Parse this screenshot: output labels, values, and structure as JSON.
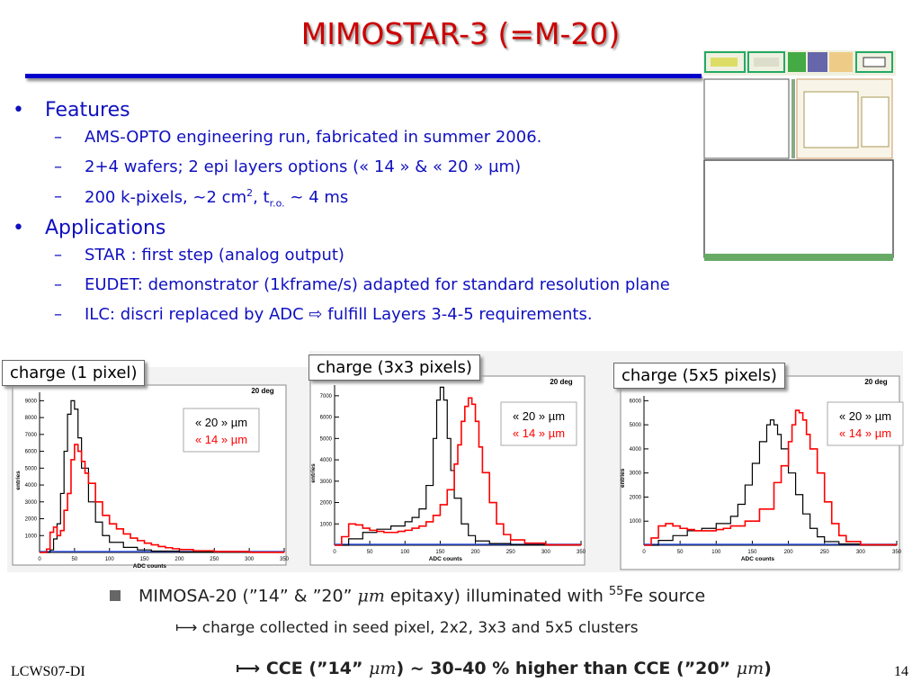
{
  "title": "MIMOSTAR-3 (=M-20)",
  "bullets": [
    {
      "label": "Features",
      "items": [
        "AMS-OPTO engineering run, fabricated in summer 2006.",
        "2+4 wafers; 2 epi layers options (« 14 » & « 20 » µm)",
        "200 k-pixels, ~2 cm², t r.o. ~ 4 ms"
      ]
    },
    {
      "label": "Applications",
      "items": [
        "STAR :  first step (analog output)",
        "EUDET: demonstrator (1kframe/s) adapted for standard resolution plane",
        "ILC: discri replaced by ADC ⇨ fulfill Layers 3-4-5 requirements."
      ]
    }
  ],
  "bullet3_parts": {
    "pre": "200 k-pixels, ~2 cm",
    "sup": "2",
    "mid": ", t",
    "sub": "r.o.",
    "post": " ~ 4 ms"
  },
  "plots": [
    {
      "label": "charge (1 pixel)",
      "tag": "20 deg",
      "xlabel": "ADC counts",
      "ylabel": "entries",
      "legend": [
        "« 20 » µm",
        "« 14 » µm"
      ]
    },
    {
      "label": "charge (3x3 pixels)",
      "tag": "20 deg",
      "xlabel": "ADC counts",
      "ylabel": "entries",
      "legend": [
        "« 20 » µm",
        "« 14 » µm"
      ]
    },
    {
      "label": "charge (5x5 pixels)",
      "tag": "20 deg",
      "xlabel": "ADC counts",
      "ylabel": "entries",
      "legend": [
        "« 20 » µm",
        "« 14 » µm"
      ]
    }
  ],
  "caption": {
    "line1_a": "MIMOSA-20 (”14” & ”20” ",
    "line1_mu": "μm",
    "line1_b": " epitaxy) illuminated with ",
    "line1_sup": "55",
    "line1_c": "Fe source",
    "line2": "charge collected in seed pixel, 2x2, 3x3 and 5x5 clusters",
    "line3_a": "CCE (”14” ",
    "line3_mu1": "μm",
    "line3_b": ") ~ 30–40 % higher than CCE (”20” ",
    "line3_mu2": "μm",
    "line3_c": ")"
  },
  "footer_left": "LCWS07-DI",
  "page_number": "14",
  "colors": {
    "title": "#cc0000",
    "bullets": "#1010c0",
    "rule": "#0000cc",
    "series_20": "#000000",
    "series_14": "#ff0000"
  },
  "chart_data": [
    {
      "type": "line",
      "title": "20 deg",
      "xlabel": "ADC counts",
      "ylabel": "entries",
      "xlim": [
        0,
        350
      ],
      "ylim": [
        0,
        9500
      ],
      "x_ticks": [
        0,
        50,
        100,
        150,
        200,
        250,
        300,
        350
      ],
      "y_ticks": [
        1000,
        2000,
        3000,
        4000,
        5000,
        6000,
        7000,
        8000,
        9000
      ],
      "series": [
        {
          "name": "« 20 » µm",
          "color": "#000000",
          "x": [
            0,
            15,
            20,
            25,
            30,
            35,
            40,
            45,
            50,
            55,
            60,
            70,
            80,
            90,
            100,
            120,
            140,
            160,
            200,
            250,
            300,
            350
          ],
          "y": [
            0,
            150,
            800,
            1700,
            3500,
            6000,
            8200,
            9000,
            8500,
            6800,
            5000,
            3000,
            1800,
            1000,
            600,
            300,
            150,
            80,
            30,
            10,
            0,
            0
          ]
        },
        {
          "name": "« 14 » µm",
          "color": "#ff0000",
          "x": [
            0,
            10,
            15,
            20,
            25,
            30,
            35,
            40,
            45,
            50,
            55,
            60,
            65,
            70,
            80,
            90,
            100,
            110,
            120,
            130,
            140,
            150,
            160,
            170,
            180,
            190,
            200,
            220,
            250,
            300,
            350
          ],
          "y": [
            0,
            200,
            1200,
            1500,
            1000,
            1300,
            2500,
            3500,
            5500,
            6400,
            6000,
            5400,
            4700,
            4100,
            3000,
            2200,
            1700,
            1400,
            1100,
            850,
            700,
            550,
            450,
            350,
            280,
            220,
            170,
            100,
            50,
            10,
            0
          ]
        }
      ]
    },
    {
      "type": "line",
      "title": "20 deg",
      "xlabel": "ADC counts",
      "ylabel": "entries",
      "xlim": [
        0,
        350
      ],
      "ylim": [
        0,
        7500
      ],
      "x_ticks": [
        0,
        50,
        100,
        150,
        200,
        250,
        300,
        350
      ],
      "y_ticks": [
        1000,
        2000,
        3000,
        4000,
        5000,
        6000,
        7000
      ],
      "series": [
        {
          "name": "« 20 » µm",
          "color": "#000000",
          "x": [
            0,
            20,
            40,
            60,
            80,
            100,
            110,
            120,
            130,
            140,
            145,
            150,
            155,
            160,
            165,
            170,
            180,
            190,
            200,
            220,
            250,
            300,
            350
          ],
          "y": [
            0,
            300,
            600,
            750,
            900,
            1100,
            1300,
            1700,
            2800,
            5000,
            6800,
            7400,
            6800,
            5000,
            3500,
            2200,
            1000,
            450,
            200,
            80,
            30,
            0,
            0
          ]
        },
        {
          "name": "« 14 » µm",
          "color": "#ff0000",
          "x": [
            0,
            10,
            20,
            30,
            40,
            50,
            60,
            70,
            80,
            90,
            100,
            110,
            120,
            130,
            140,
            150,
            160,
            170,
            175,
            180,
            185,
            190,
            195,
            200,
            205,
            210,
            220,
            230,
            240,
            250,
            270,
            300,
            350
          ],
          "y": [
            0,
            400,
            1000,
            950,
            800,
            700,
            650,
            600,
            600,
            650,
            700,
            800,
            900,
            1100,
            1400,
            1900,
            2600,
            3800,
            4700,
            5800,
            6500,
            6900,
            6600,
            5800,
            4600,
            3400,
            2000,
            1000,
            500,
            250,
            100,
            20,
            0
          ]
        }
      ]
    },
    {
      "type": "line",
      "title": "20 deg",
      "xlabel": "ADC counts",
      "ylabel": "entries",
      "xlim": [
        0,
        350
      ],
      "ylim": [
        0,
        6200
      ],
      "x_ticks": [
        0,
        50,
        100,
        150,
        200,
        250,
        300,
        350
      ],
      "y_ticks": [
        1000,
        2000,
        3000,
        4000,
        5000,
        6000
      ],
      "series": [
        {
          "name": "« 20 » µm",
          "color": "#000000",
          "x": [
            0,
            20,
            40,
            60,
            80,
            100,
            120,
            130,
            140,
            150,
            160,
            170,
            175,
            180,
            185,
            190,
            200,
            210,
            220,
            230,
            240,
            250,
            270,
            300,
            350
          ],
          "y": [
            0,
            200,
            400,
            600,
            700,
            900,
            1200,
            1700,
            2500,
            3400,
            4300,
            5000,
            5200,
            5000,
            4600,
            4000,
            3000,
            2100,
            1300,
            700,
            350,
            150,
            50,
            0,
            0
          ]
        },
        {
          "name": "« 14 » µm",
          "color": "#ff0000",
          "x": [
            0,
            10,
            20,
            30,
            40,
            50,
            60,
            70,
            80,
            90,
            100,
            110,
            120,
            140,
            160,
            180,
            190,
            200,
            205,
            210,
            215,
            220,
            225,
            230,
            240,
            250,
            260,
            270,
            280,
            300,
            350
          ],
          "y": [
            0,
            300,
            800,
            900,
            800,
            700,
            650,
            600,
            600,
            600,
            650,
            700,
            800,
            1000,
            1500,
            2600,
            3300,
            4300,
            5000,
            5600,
            5500,
            5200,
            4600,
            4000,
            3000,
            1800,
            900,
            400,
            150,
            20,
            0
          ]
        }
      ]
    }
  ]
}
